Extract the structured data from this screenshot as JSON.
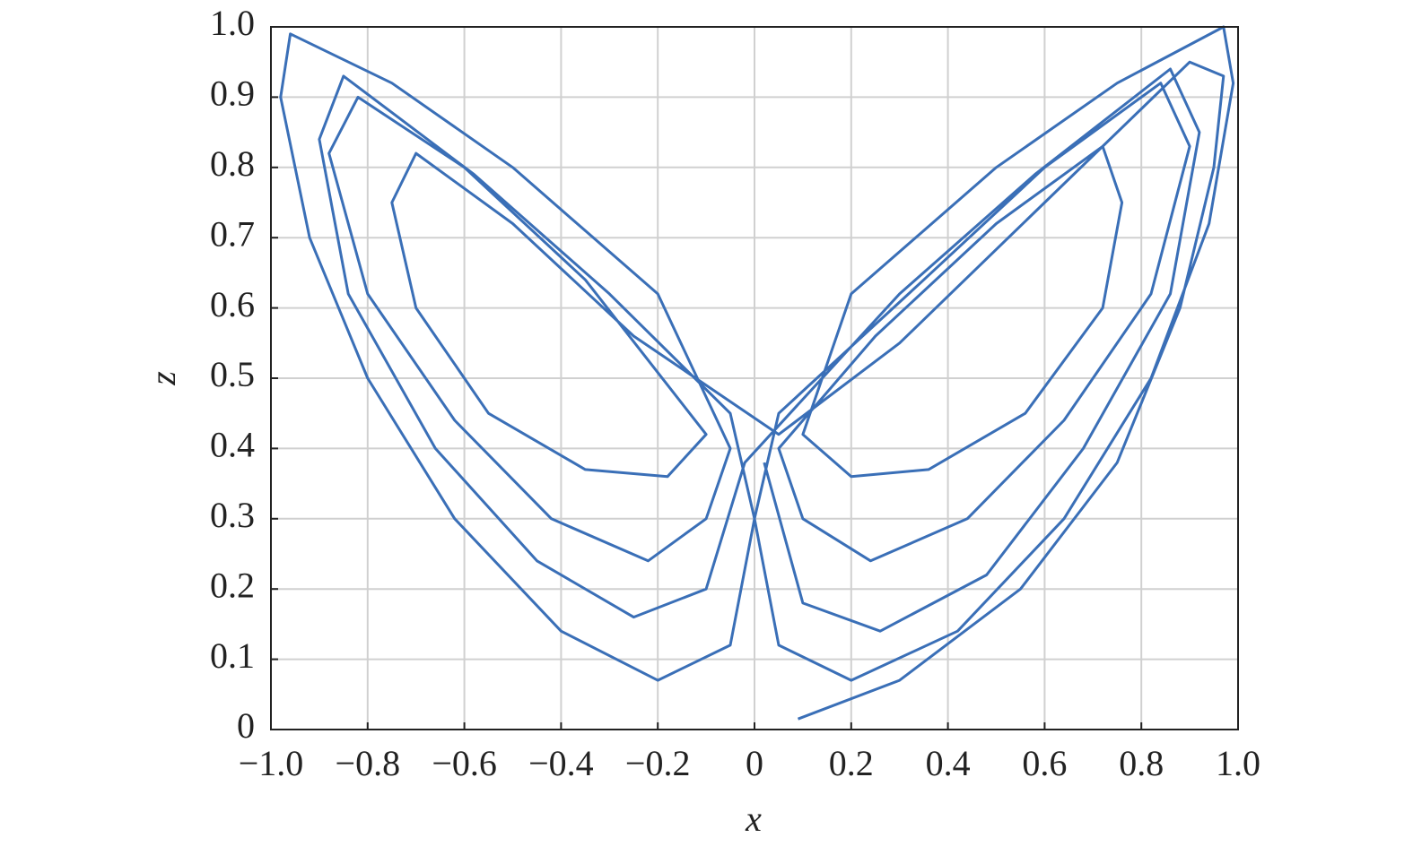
{
  "chart_data": {
    "type": "line",
    "xlabel": "x",
    "ylabel": "z",
    "color": "#3a6fb7",
    "grid": true,
    "xlim": [
      -1,
      1
    ],
    "ylim": [
      0,
      1
    ],
    "xticks": [
      {
        "value": -1,
        "label": "−1.0"
      },
      {
        "value": -0.8,
        "label": "−0.8"
      },
      {
        "value": -0.6,
        "label": "−0.6"
      },
      {
        "value": -0.4,
        "label": "−0.4"
      },
      {
        "value": -0.2,
        "label": "−0.2"
      },
      0,
      0.2,
      0.4,
      0.6,
      0.8,
      {
        "value": 1,
        "label": "1.0"
      }
    ],
    "yticks": [
      0,
      0.1,
      0.2,
      0.3,
      0.4,
      0.5,
      0.6,
      0.7,
      0.8,
      0.9,
      {
        "value": 1,
        "label": "1.0"
      }
    ],
    "x": [
      0.09,
      0.3,
      0.55,
      0.75,
      0.88,
      0.95,
      0.97,
      0.9,
      0.6,
      0.3,
      0.05,
      -0.25,
      -0.5,
      -0.7,
      -0.75,
      -0.7,
      -0.55,
      -0.35,
      -0.18,
      -0.1,
      -0.35,
      -0.6,
      -0.82,
      -0.88,
      -0.8,
      -0.62,
      -0.42,
      -0.22,
      -0.1,
      -0.05,
      -0.2,
      -0.5,
      -0.75,
      -0.96,
      -0.98,
      -0.92,
      -0.8,
      -0.62,
      -0.4,
      -0.2,
      -0.05,
      0,
      0.05,
      0.35,
      0.6,
      0.84,
      0.9,
      0.82,
      0.64,
      0.44,
      0.24,
      0.1,
      0.05,
      0.25,
      0.5,
      0.72,
      0.76,
      0.72,
      0.56,
      0.36,
      0.2,
      0.1,
      0.2,
      0.5,
      0.75,
      0.97,
      0.99,
      0.94,
      0.82,
      0.64,
      0.42,
      0.2,
      0.05,
      0,
      -0.05,
      -0.3,
      -0.58,
      -0.85,
      -0.9,
      -0.84,
      -0.66,
      -0.45,
      -0.25,
      -0.1,
      -0.02,
      0.3,
      0.58,
      0.86,
      0.92,
      0.86,
      0.68,
      0.48,
      0.26,
      0.1,
      0.02
    ],
    "values": [
      0.015,
      0.07,
      0.2,
      0.38,
      0.6,
      0.8,
      0.93,
      0.95,
      0.75,
      0.55,
      0.42,
      0.56,
      0.72,
      0.82,
      0.75,
      0.6,
      0.45,
      0.37,
      0.36,
      0.42,
      0.64,
      0.8,
      0.9,
      0.82,
      0.62,
      0.44,
      0.3,
      0.24,
      0.3,
      0.4,
      0.62,
      0.8,
      0.92,
      0.99,
      0.9,
      0.7,
      0.5,
      0.3,
      0.14,
      0.07,
      0.12,
      0.3,
      0.45,
      0.64,
      0.8,
      0.92,
      0.83,
      0.62,
      0.44,
      0.3,
      0.24,
      0.3,
      0.4,
      0.56,
      0.72,
      0.83,
      0.75,
      0.6,
      0.45,
      0.37,
      0.36,
      0.42,
      0.62,
      0.8,
      0.92,
      1.0,
      0.92,
      0.72,
      0.5,
      0.3,
      0.14,
      0.07,
      0.12,
      0.3,
      0.45,
      0.62,
      0.79,
      0.93,
      0.84,
      0.62,
      0.4,
      0.24,
      0.16,
      0.2,
      0.38,
      0.62,
      0.79,
      0.94,
      0.85,
      0.62,
      0.4,
      0.22,
      0.14,
      0.18,
      0.38
    ]
  }
}
